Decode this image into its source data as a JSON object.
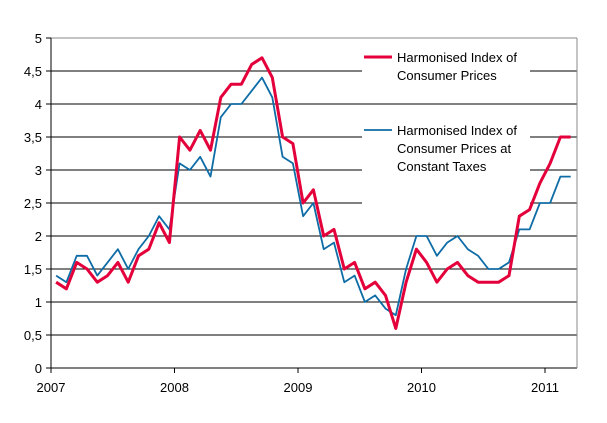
{
  "chart_data": {
    "type": "line",
    "title": "",
    "xlabel": "",
    "ylabel": "",
    "ylim": [
      0,
      5
    ],
    "yticks": [
      "0",
      "0,5",
      "1",
      "1,5",
      "2",
      "2,5",
      "3",
      "3,5",
      "4",
      "4,5",
      "5"
    ],
    "xticks": [
      "2007",
      "2008",
      "2009",
      "2010",
      "2011"
    ],
    "x_range": [
      "2007-01",
      "2011-03"
    ],
    "grid": true,
    "legend_placement": "top-right",
    "series": [
      {
        "name": "Harmonised Index of Consumer Prices",
        "name_lines": [
          "Harmonised Index of",
          "Consumer Prices"
        ],
        "color": "#e4003a",
        "values": [
          1.3,
          1.2,
          1.6,
          1.5,
          1.3,
          1.4,
          1.6,
          1.3,
          1.7,
          1.8,
          2.2,
          1.9,
          3.5,
          3.3,
          3.6,
          3.3,
          4.1,
          4.3,
          4.3,
          4.6,
          4.7,
          4.4,
          3.5,
          3.4,
          2.5,
          2.7,
          2.0,
          2.1,
          1.5,
          1.6,
          1.2,
          1.3,
          1.1,
          0.6,
          1.3,
          1.8,
          1.6,
          1.3,
          1.5,
          1.6,
          1.4,
          1.3,
          1.3,
          1.3,
          1.4,
          2.3,
          2.4,
          2.8,
          3.1,
          3.5,
          3.5
        ]
      },
      {
        "name": "Harmonised Index of Consumer Prices at Constant Taxes",
        "name_lines": [
          "Harmonised Index of",
          "Consumer Prices at",
          "Constant Taxes"
        ],
        "color": "#0e6ca6",
        "values": [
          1.4,
          1.3,
          1.7,
          1.7,
          1.4,
          1.6,
          1.8,
          1.5,
          1.8,
          2.0,
          2.3,
          2.1,
          3.1,
          3.0,
          3.2,
          2.9,
          3.8,
          4.0,
          4.0,
          4.2,
          4.4,
          4.1,
          3.2,
          3.1,
          2.3,
          2.5,
          1.8,
          1.9,
          1.3,
          1.4,
          1.0,
          1.1,
          0.9,
          0.8,
          1.5,
          2.0,
          2.0,
          1.7,
          1.9,
          2.0,
          1.8,
          1.7,
          1.5,
          1.5,
          1.6,
          2.1,
          2.1,
          2.5,
          2.5,
          2.9,
          2.9
        ]
      }
    ]
  }
}
